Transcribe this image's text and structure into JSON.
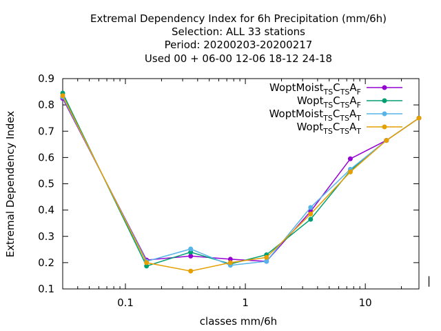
{
  "title_lines": [
    "Extremal Dependency Index  for 6h Precipitation (mm/6h)",
    "Selection: ALL     33 stations",
    "Period: 20200203-20200217",
    "Used  00 + 06-00 12-06 18-12 24-18"
  ],
  "chart_data": {
    "type": "line",
    "xscale": "log",
    "xlabel": "classes mm/6h",
    "ylabel": "Extremal Dependency Index",
    "xlim": [
      0.03,
      28
    ],
    "ylim": [
      0.1,
      0.9
    ],
    "xticks": [
      {
        "v": 0.1,
        "label": "0.1"
      },
      {
        "v": 1,
        "label": "1"
      },
      {
        "v": 10,
        "label": "10"
      }
    ],
    "yticks": [
      {
        "v": 0.1,
        "label": "0.1"
      },
      {
        "v": 0.2,
        "label": "0.2"
      },
      {
        "v": 0.3,
        "label": "0.3"
      },
      {
        "v": 0.4,
        "label": "0.4"
      },
      {
        "v": 0.5,
        "label": "0.5"
      },
      {
        "v": 0.6,
        "label": "0.6"
      },
      {
        "v": 0.7,
        "label": "0.7"
      },
      {
        "v": 0.8,
        "label": "0.8"
      },
      {
        "v": 0.9,
        "label": "0.9"
      }
    ],
    "grid": false,
    "legend_position": "top-right",
    "x": [
      0.03,
      0.15,
      0.35,
      0.75,
      1.5,
      3.5,
      7.5,
      15,
      28
    ],
    "series": [
      {
        "name": "WoptMoist TS CTS AF",
        "base": "WoptMoist",
        "s1": "TS",
        "c": "C",
        "s2": "TS",
        "a": "A",
        "s3": "F",
        "color": "#9400d3",
        "marker": "filled-circle",
        "values": [
          0.825,
          0.21,
          0.225,
          0.213,
          0.205,
          0.395,
          0.595,
          0.665,
          0.75
        ]
      },
      {
        "name": "Wopt TS CTS AF",
        "base": "Wopt",
        "s1": "TS",
        "c": "C",
        "s2": "TS",
        "a": "A",
        "s3": "F",
        "color": "#009e73",
        "marker": "filled-circle",
        "values": [
          0.845,
          0.187,
          0.24,
          0.195,
          0.23,
          0.365,
          0.55,
          0.665,
          0.75
        ]
      },
      {
        "name": "WoptMoist TS CTS AT",
        "base": "WoptMoist",
        "s1": "TS",
        "c": "C",
        "s2": "TS",
        "a": "A",
        "s3": "T",
        "color": "#56b4e9",
        "marker": "filled-circle",
        "values": [
          0.83,
          0.205,
          0.252,
          0.19,
          0.205,
          0.41,
          0.555,
          0.665,
          0.75
        ]
      },
      {
        "name": "Wopt TS CTS AT",
        "base": "Wopt",
        "s1": "TS",
        "c": "C",
        "s2": "TS",
        "a": "A",
        "s3": "T",
        "color": "#e69f00",
        "marker": "filled-circle",
        "values": [
          0.835,
          0.2,
          0.168,
          0.2,
          0.22,
          0.385,
          0.545,
          0.665,
          0.75
        ]
      }
    ]
  }
}
